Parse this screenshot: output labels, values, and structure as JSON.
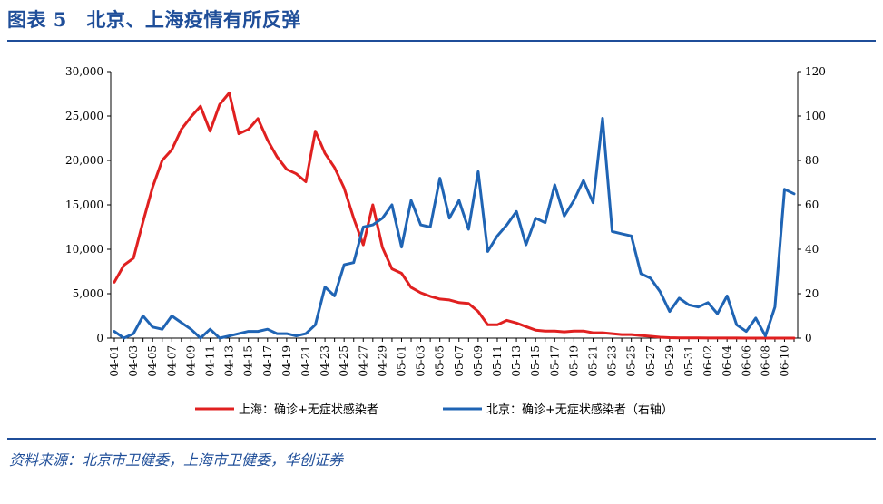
{
  "title": "图表 5　北京、上海疫情有所反弹",
  "source": "资料来源：北京市卫健委，上海市卫健委，华创证券",
  "colors": {
    "accent": "#1f4e99",
    "shanghai": "#e02020",
    "beijing": "#1f64b4"
  },
  "chart_data": {
    "type": "line",
    "x": [
      "04-01",
      "04-02",
      "04-03",
      "04-04",
      "04-05",
      "04-06",
      "04-07",
      "04-08",
      "04-09",
      "04-10",
      "04-11",
      "04-12",
      "04-13",
      "04-14",
      "04-15",
      "04-16",
      "04-17",
      "04-18",
      "04-19",
      "04-20",
      "04-21",
      "04-22",
      "04-23",
      "04-24",
      "04-25",
      "04-26",
      "04-27",
      "04-28",
      "04-29",
      "04-30",
      "05-01",
      "05-02",
      "05-03",
      "05-04",
      "05-05",
      "05-06",
      "05-07",
      "05-08",
      "05-09",
      "05-10",
      "05-11",
      "05-12",
      "05-13",
      "05-14",
      "05-15",
      "05-16",
      "05-17",
      "05-18",
      "05-19",
      "05-20",
      "05-21",
      "05-22",
      "05-23",
      "05-24",
      "05-25",
      "05-26",
      "05-27",
      "05-28",
      "05-29",
      "05-30",
      "05-31",
      "06-01",
      "06-02",
      "06-03",
      "06-04",
      "06-05",
      "06-06",
      "06-07",
      "06-08",
      "06-09",
      "06-10",
      "06-11"
    ],
    "x_tick_labels": [
      "04-01",
      "04-03",
      "04-05",
      "04-07",
      "04-09",
      "04-11",
      "04-13",
      "04-15",
      "04-17",
      "04-19",
      "04-21",
      "04-23",
      "04-25",
      "04-27",
      "04-29",
      "05-01",
      "05-03",
      "05-05",
      "05-07",
      "05-09",
      "05-11",
      "05-13",
      "05-15",
      "05-17",
      "05-19",
      "05-21",
      "05-23",
      "05-25",
      "05-27",
      "05-29",
      "05-31",
      "06-02",
      "06-04",
      "06-06",
      "06-08",
      "06-10"
    ],
    "y_left": {
      "lim": [
        0,
        30000
      ],
      "ticks": [
        "0",
        "5,000",
        "10,000",
        "15,000",
        "20,000",
        "25,000",
        "30,000"
      ]
    },
    "y_right": {
      "lim": [
        0,
        120
      ],
      "ticks": [
        "0",
        "20",
        "40",
        "60",
        "80",
        "100",
        "120"
      ]
    },
    "series": [
      {
        "name": "上海：确诊+无症状感染者",
        "axis": "left",
        "color": "#e02020",
        "values": [
          6300,
          8200,
          9000,
          13100,
          17000,
          20000,
          21200,
          23500,
          24900,
          26100,
          23300,
          26300,
          27600,
          23000,
          23500,
          24700,
          22300,
          20400,
          19000,
          18500,
          17600,
          23300,
          20800,
          19200,
          16900,
          13500,
          10500,
          15000,
          10200,
          7800,
          7300,
          5700,
          5100,
          4700,
          4400,
          4300,
          4000,
          3900,
          3000,
          1500,
          1500,
          2000,
          1700,
          1300,
          900,
          800,
          800,
          700,
          800,
          800,
          600,
          600,
          500,
          400,
          400,
          300,
          200,
          100,
          50,
          30,
          20,
          20,
          15,
          10,
          10,
          10,
          5,
          5,
          5,
          5,
          5,
          5
        ]
      },
      {
        "name": "北京：确诊+无症状感染者（右轴）",
        "axis": "right",
        "color": "#1f64b4",
        "values": [
          3,
          0,
          2,
          10,
          5,
          4,
          10,
          7,
          4,
          0,
          4,
          0,
          1,
          2,
          3,
          3,
          4,
          2,
          2,
          1,
          2,
          6,
          23,
          19,
          33,
          34,
          50,
          51,
          54,
          60,
          41,
          62,
          51,
          50,
          72,
          54,
          62,
          49,
          75,
          39,
          46,
          51,
          57,
          42,
          54,
          52,
          69,
          55,
          62,
          71,
          61,
          99,
          48,
          47,
          46,
          29,
          27,
          21,
          12,
          18,
          15,
          14,
          16,
          11,
          19,
          6,
          3,
          9,
          1,
          14,
          67,
          65
        ]
      }
    ],
    "legend_position": "bottom",
    "grid": false
  }
}
